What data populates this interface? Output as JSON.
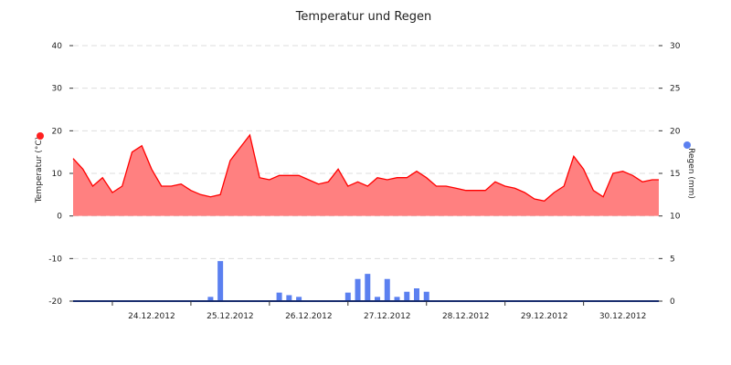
{
  "chart_data": {
    "type": "area",
    "title": "Temperatur und Regen",
    "grid": true,
    "x_axis": {
      "type": "date",
      "range": [
        "23.12.2012 12:00",
        "30.12.2012 23:00"
      ],
      "tick_labels": [
        "24.12.2012",
        "25.12.2012",
        "26.12.2012",
        "27.12.2012",
        "28.12.2012",
        "29.12.2012",
        "30.12.2012"
      ]
    },
    "y_left": {
      "label": "Temperatur (°C)",
      "range": [
        -20,
        40
      ],
      "ticks": [
        -20,
        -10,
        0,
        10,
        20,
        30,
        40
      ],
      "marker_color": "#ff2020"
    },
    "y_right": {
      "label": "Regen (mm)",
      "range": [
        0,
        30
      ],
      "ticks": [
        0,
        5,
        10,
        15,
        20,
        25,
        30
      ],
      "marker_color": "#5b80f0"
    },
    "series": [
      {
        "type": "area",
        "axis": "left",
        "color": "#ff0000",
        "fill": "#ff8080",
        "x": [
          "23.12.2012 12:00",
          "23.12.2012 15:00",
          "23.12.2012 18:00",
          "23.12.2012 21:00",
          "24.12.2012 00:00",
          "24.12.2012 03:00",
          "24.12.2012 06:00",
          "24.12.2012 09:00",
          "24.12.2012 12:00",
          "24.12.2012 15:00",
          "24.12.2012 18:00",
          "24.12.2012 21:00",
          "25.12.2012 00:00",
          "25.12.2012 03:00",
          "25.12.2012 06:00",
          "25.12.2012 09:00",
          "25.12.2012 12:00",
          "25.12.2012 15:00",
          "25.12.2012 18:00",
          "25.12.2012 21:00",
          "26.12.2012 00:00",
          "26.12.2012 03:00",
          "26.12.2012 06:00",
          "26.12.2012 09:00",
          "26.12.2012 12:00",
          "26.12.2012 15:00",
          "26.12.2012 18:00",
          "26.12.2012 21:00",
          "27.12.2012 00:00",
          "27.12.2012 03:00",
          "27.12.2012 06:00",
          "27.12.2012 09:00",
          "27.12.2012 12:00",
          "27.12.2012 15:00",
          "27.12.2012 18:00",
          "27.12.2012 21:00",
          "28.12.2012 00:00",
          "28.12.2012 03:00",
          "28.12.2012 06:00",
          "28.12.2012 09:00",
          "28.12.2012 12:00",
          "28.12.2012 15:00",
          "28.12.2012 18:00",
          "28.12.2012 21:00",
          "29.12.2012 00:00",
          "29.12.2012 03:00",
          "29.12.2012 06:00",
          "29.12.2012 09:00",
          "29.12.2012 12:00",
          "29.12.2012 15:00",
          "29.12.2012 18:00",
          "29.12.2012 21:00",
          "30.12.2012 00:00",
          "30.12.2012 03:00",
          "30.12.2012 06:00",
          "30.12.2012 09:00",
          "30.12.2012 12:00",
          "30.12.2012 15:00",
          "30.12.2012 18:00",
          "30.12.2012 21:00",
          "30.12.2012 23:00"
        ],
        "values": [
          13.5,
          11,
          7,
          9,
          5.5,
          7,
          15,
          16.5,
          11,
          7,
          7,
          7.5,
          6,
          5,
          4.5,
          5,
          13,
          16,
          19,
          9,
          8.5,
          9.5,
          9.5,
          9.5,
          8.5,
          7.5,
          8,
          11,
          7,
          8,
          7,
          9,
          8.5,
          9,
          9,
          10.5,
          9,
          7,
          7,
          6.5,
          6,
          6,
          6,
          8,
          7,
          6.5,
          5.5,
          4,
          3.5,
          5.5,
          7,
          14,
          11,
          6,
          4.5,
          10,
          10.5,
          9.5,
          8,
          8.5,
          8.5
        ]
      },
      {
        "type": "bar",
        "axis": "right",
        "color": "#5b80f0",
        "x": [
          "25.12.2012 06:00",
          "25.12.2012 09:00",
          "26.12.2012 03:00",
          "26.12.2012 06:00",
          "26.12.2012 09:00",
          "27.12.2012 00:00",
          "27.12.2012 03:00",
          "27.12.2012 06:00",
          "27.12.2012 09:00",
          "27.12.2012 12:00",
          "27.12.2012 15:00",
          "27.12.2012 18:00",
          "27.12.2012 21:00",
          "28.12.2012 00:00"
        ],
        "values": [
          0.5,
          4.7,
          1,
          0.7,
          0.5,
          1,
          2.6,
          3.2,
          0.5,
          2.6,
          0.5,
          1.1,
          1.5,
          1.1
        ]
      }
    ]
  }
}
